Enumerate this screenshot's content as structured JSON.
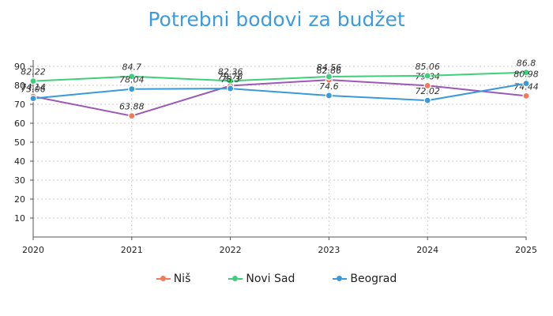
{
  "chart_data": {
    "type": "line",
    "title": "Potrebni bodovi za budžet",
    "xlabel": "",
    "ylabel": "",
    "categories": [
      "2020",
      "2021",
      "2022",
      "2023",
      "2024",
      "2025"
    ],
    "ylim": [
      0,
      90
    ],
    "yticks": [
      10,
      20,
      30,
      40,
      50,
      60,
      70,
      80,
      90
    ],
    "grid": true,
    "legend_position": "bottom",
    "series": [
      {
        "name": "Niš",
        "color": "#f07a5a",
        "line_color": "#9b59b6",
        "values": [
          74.14,
          63.88,
          79.78,
          82.86,
          79.84,
          74.44
        ]
      },
      {
        "name": "Novi Sad",
        "color": "#3ecf7a",
        "line_color": "#3ecf7a",
        "values": [
          82.22,
          84.7,
          82.36,
          84.56,
          85.06,
          86.8
        ]
      },
      {
        "name": "Beograd",
        "color": "#3a9ad9",
        "line_color": "#3a9ad9",
        "values": [
          73.06,
          78.04,
          78.3,
          74.6,
          72.02,
          80.98
        ]
      }
    ]
  }
}
